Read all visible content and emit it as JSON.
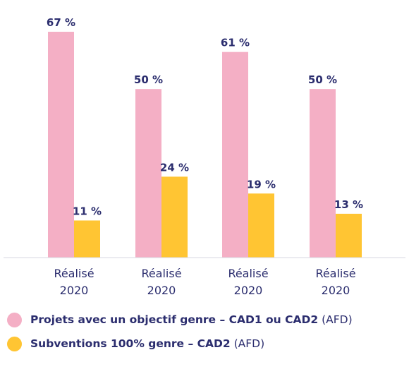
{
  "chart_data": {
    "type": "bar",
    "categories": [
      [
        "Réalisé",
        "2020"
      ],
      [
        "Réalisé",
        "2020"
      ],
      [
        "Réalisé",
        "2020"
      ],
      [
        "Réalisé",
        "2020"
      ]
    ],
    "series": [
      {
        "name": "Projets avec un objectif genre – CAD1 ou CAD2",
        "source": "(AFD)",
        "color": "#f4afc5",
        "values": [
          67,
          50,
          61,
          50
        ],
        "labels": [
          "67 %",
          "50 %",
          "61 %",
          "50 %"
        ]
      },
      {
        "name": "Subventions 100% genre – CAD2",
        "source": "(AFD)",
        "color": "#ffc533",
        "values": [
          11,
          24,
          19,
          13
        ],
        "labels": [
          "11 %",
          "24 %",
          "19 %",
          "13 %"
        ]
      }
    ],
    "ylim": [
      0,
      67
    ],
    "grid": false,
    "legend_position": "bottom-left"
  }
}
